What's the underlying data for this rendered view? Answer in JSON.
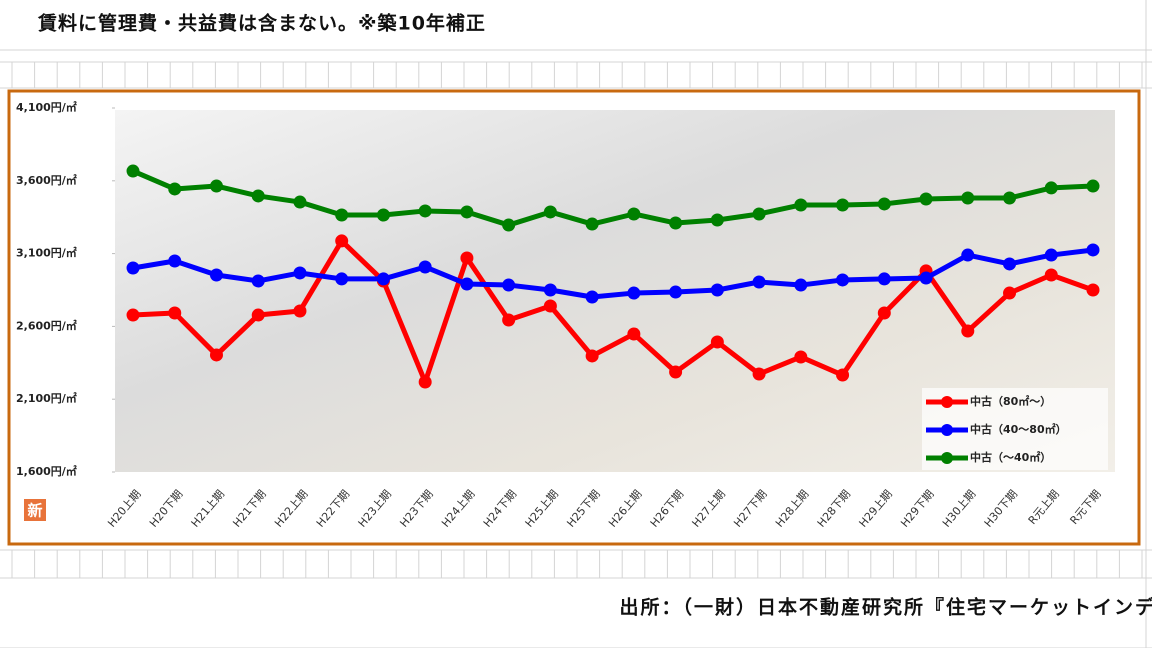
{
  "header": {
    "note": "賃料に管理費・共益費は含まない。※築10年補正"
  },
  "chart_data": {
    "type": "line",
    "categories": [
      "H20上期",
      "H20下期",
      "H21上期",
      "H21下期",
      "H22上期",
      "H22下期",
      "H23上期",
      "H23下期",
      "H24上期",
      "H24下期",
      "H25上期",
      "H25下期",
      "H26上期",
      "H26下期",
      "H27上期",
      "H27下期",
      "H28上期",
      "H28下期",
      "H29上期",
      "H29下期",
      "H30上期",
      "H30下期",
      "R元上期",
      "R元下期"
    ],
    "series": [
      {
        "name": "中古（80㎡～）",
        "color": "#ff0000",
        "values": [
          2678,
          2692,
          2404,
          2678,
          2706,
          3187,
          2912,
          2218,
          3070,
          2644,
          2740,
          2397,
          2548,
          2287,
          2493,
          2273,
          2390,
          2266,
          2692,
          2981,
          2568,
          2829,
          2953,
          2850
        ]
      },
      {
        "name": "中古（40～80㎡）",
        "color": "#0000ff",
        "values": [
          3001,
          3049,
          2953,
          2912,
          2967,
          2926,
          2926,
          3008,
          2891,
          2884,
          2850,
          2802,
          2829,
          2836,
          2850,
          2905,
          2884,
          2919,
          2926,
          2932,
          3090,
          3029,
          3090,
          3125
        ]
      },
      {
        "name": "中古（～40㎡）",
        "color": "#008000",
        "values": [
          3667,
          3544,
          3564,
          3496,
          3454,
          3365,
          3365,
          3393,
          3386,
          3296,
          3386,
          3303,
          3372,
          3310,
          3331,
          3372,
          3434,
          3434,
          3441,
          3475,
          3482,
          3482,
          3551,
          3564
        ]
      }
    ],
    "ylim": [
      1600,
      4100
    ],
    "yticks": [
      {
        "value": 1600,
        "label": "1,600円/㎡"
      },
      {
        "value": 2100,
        "label": "2,100円/㎡"
      },
      {
        "value": 2600,
        "label": "2,600円/㎡"
      },
      {
        "value": 3100,
        "label": "3,100円/㎡"
      },
      {
        "value": 3600,
        "label": "3,600円/㎡"
      },
      {
        "value": 4100,
        "label": "4,100円/㎡"
      }
    ],
    "legend": "lower-right",
    "badge": "新"
  },
  "footer": {
    "source": "出所：（一財）日本不動産研究所『住宅マーケットインデックス令和元年下期版』"
  }
}
